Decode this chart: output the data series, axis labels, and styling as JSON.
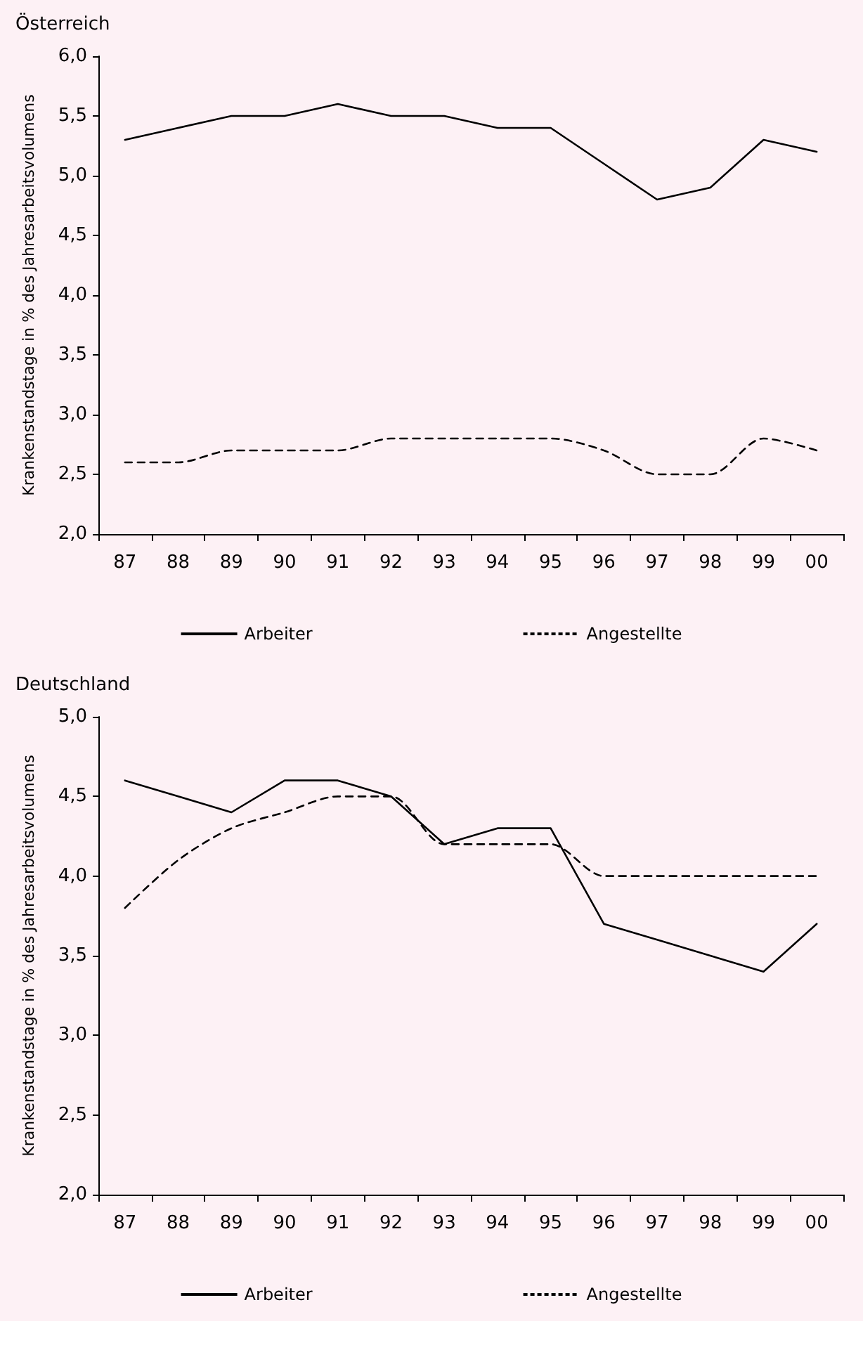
{
  "chart_data": [
    {
      "type": "line",
      "title": "Österreich",
      "ylabel": "Krankenstandstage in % des Jahresarbeitsvolumens",
      "categories": [
        "87",
        "88",
        "89",
        "90",
        "91",
        "92",
        "93",
        "94",
        "95",
        "96",
        "97",
        "98",
        "99",
        "00"
      ],
      "series": [
        {
          "name": "Arbeiter",
          "color": "#000000",
          "line_style": "solid",
          "values": [
            5.3,
            5.4,
            5.5,
            5.5,
            5.6,
            5.5,
            5.5,
            5.4,
            5.4,
            5.1,
            4.8,
            4.9,
            5.3,
            5.2
          ]
        },
        {
          "name": "Angestellte",
          "color": "#000000",
          "line_style": "dashed",
          "values": [
            2.6,
            2.6,
            2.7,
            2.7,
            2.7,
            2.8,
            2.8,
            2.8,
            2.8,
            2.7,
            2.5,
            2.5,
            2.8,
            2.7
          ]
        }
      ],
      "ylim": [
        2,
        6
      ],
      "yticks": [
        {
          "value": 2,
          "label": "2,0"
        },
        {
          "value": 2.5,
          "label": "2,5"
        },
        {
          "value": 3,
          "label": "3,0"
        },
        {
          "value": 3.5,
          "label": "3,5"
        },
        {
          "value": 4,
          "label": "4,0"
        },
        {
          "value": 4.5,
          "label": "4,5"
        },
        {
          "value": 5,
          "label": "5,0"
        },
        {
          "value": 5.5,
          "label": "5,5"
        },
        {
          "value": 6,
          "label": "6,0"
        }
      ],
      "grid": false,
      "legend": "bottom",
      "marker": "none"
    },
    {
      "type": "line",
      "title": "Deutschland",
      "ylabel": "Krankenstandstage in % des Jahresarbeitsvolumens",
      "categories": [
        "87",
        "88",
        "89",
        "90",
        "91",
        "92",
        "93",
        "94",
        "95",
        "96",
        "97",
        "98",
        "99",
        "00"
      ],
      "series": [
        {
          "name": "Arbeiter",
          "color": "#000000",
          "line_style": "solid",
          "values": [
            4.6,
            4.5,
            4.4,
            4.6,
            4.6,
            4.5,
            4.2,
            4.3,
            4.3,
            3.7,
            3.6,
            3.5,
            3.4,
            3.7
          ]
        },
        {
          "name": "Angestellte",
          "color": "#000000",
          "line_style": "dashed",
          "values": [
            3.8,
            4.1,
            4.3,
            4.4,
            4.5,
            4.5,
            4.2,
            4.2,
            4.2,
            4.0,
            4.0,
            4.0,
            4.0,
            4.0
          ]
        }
      ],
      "ylim": [
        2,
        5
      ],
      "yticks": [
        {
          "value": 2,
          "label": "2,0"
        },
        {
          "value": 2.5,
          "label": "2,5"
        },
        {
          "value": 3,
          "label": "3,0"
        },
        {
          "value": 3.5,
          "label": "3,5"
        },
        {
          "value": 4,
          "label": "4,0"
        },
        {
          "value": 4.5,
          "label": "4,5"
        },
        {
          "value": 5,
          "label": "5,0"
        }
      ],
      "grid": false,
      "legend": "bottom",
      "marker": "none"
    }
  ]
}
